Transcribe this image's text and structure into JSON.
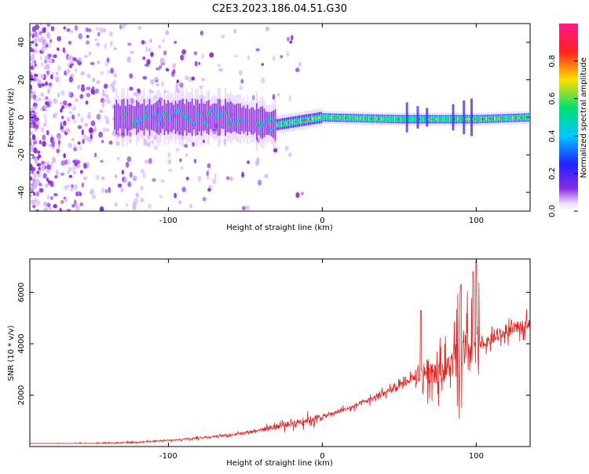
{
  "title": "C2E3.2023.186.04.51.G30",
  "colors": {
    "snr_line": "#e8201e",
    "frame": "#000000",
    "spectrogram_colormap": [
      "#ffffff",
      "#d9b8ff",
      "#8a2be2",
      "#3b20ff",
      "#00c8ff",
      "#00e070",
      "#ffd000",
      "#ff2020",
      "#ff2090"
    ]
  },
  "chart_data": [
    {
      "type": "heatmap",
      "title": "C2E3.2023.186.04.51.G30",
      "xlabel": "Height of straight line (km)",
      "ylabel": "Frequency (Hz)",
      "xlim": [
        -190,
        135
      ],
      "ylim": [
        -50,
        50
      ],
      "x_ticks": [
        "-100",
        "0",
        "100"
      ],
      "y_ticks": [
        "-40",
        "-20",
        "0",
        "20",
        "40"
      ],
      "colorbar": {
        "label": "Normalized spectral amplitude",
        "range": [
          0.0,
          1.0
        ],
        "ticks": [
          "0.0",
          "0.2",
          "0.4",
          "0.6",
          "0.8"
        ]
      },
      "features": {
        "noise_region_x": [
          -190,
          -70
        ],
        "signal_band_center_hz": [
          {
            "x": -135,
            "f": 0
          },
          {
            "x": -60,
            "f": 0
          },
          {
            "x": -30,
            "f": -4
          },
          {
            "x": -15,
            "f": -2
          },
          {
            "x": 0,
            "f": 0
          },
          {
            "x": 50,
            "f": -1
          },
          {
            "x": 100,
            "f": -1
          },
          {
            "x": 135,
            "f": 0
          }
        ]
      },
      "grid": false
    },
    {
      "type": "line",
      "xlabel": "Height of straight line (km)",
      "ylabel": "SNR (10 * v/v)",
      "xlim": [
        -190,
        135
      ],
      "ylim": [
        0,
        7300
      ],
      "x_ticks": [
        "-100",
        "0",
        "100"
      ],
      "y_ticks": [
        "2000",
        "4000",
        "6000"
      ],
      "series": [
        {
          "trend": [
            {
              "x": -190,
              "y": 80
            },
            {
              "x": -140,
              "y": 120
            },
            {
              "x": -100,
              "y": 230
            },
            {
              "x": -60,
              "y": 450
            },
            {
              "x": -40,
              "y": 650
            },
            {
              "x": -20,
              "y": 900
            },
            {
              "x": 0,
              "y": 1150
            },
            {
              "x": 20,
              "y": 1550
            },
            {
              "x": 40,
              "y": 2050
            },
            {
              "x": 50,
              "y": 2350
            },
            {
              "x": 60,
              "y": 2700
            },
            {
              "x": 64,
              "y": 2900
            },
            {
              "x": 80,
              "y": 3000
            },
            {
              "x": 100,
              "y": 3850
            },
            {
              "x": 110,
              "y": 4150
            },
            {
              "x": 120,
              "y": 4450
            },
            {
              "x": 135,
              "y": 4850
            }
          ],
          "peaks": [
            {
              "x": 98,
              "y": 6800
            },
            {
              "x": 100,
              "y": 7200
            },
            {
              "x": 90,
              "y": 6300
            },
            {
              "x": 64,
              "y": 5300
            }
          ]
        }
      ],
      "grid": false
    }
  ]
}
